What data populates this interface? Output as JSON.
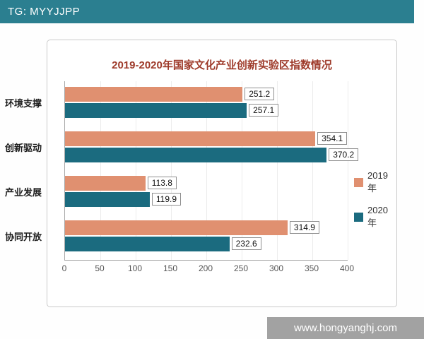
{
  "top_bar": {
    "label": "TG: MYYJJPP",
    "bg": "#2B7F90",
    "text_color": "#FFFFFF"
  },
  "bottom_bar": {
    "label": "www.hongyanghj.com",
    "bg": "#A2A2A2",
    "text_color": "#FFFFFF"
  },
  "chart_data": {
    "type": "bar",
    "orientation": "horizontal",
    "title": "2019-2020年国家文化产业创新实验区指数情况",
    "title_color": "#9E3A2A",
    "categories": [
      "环境支撑",
      "创新驱动",
      "产业发展",
      "协同开放"
    ],
    "series": [
      {
        "name": "2019年",
        "color": "#E09070",
        "values": [
          251.2,
          354.1,
          113.8,
          314.9
        ]
      },
      {
        "name": "2020年",
        "color": "#1B6B7F",
        "values": [
          257.1,
          370.2,
          119.9,
          232.6
        ]
      }
    ],
    "xlim": [
      0,
      400
    ],
    "xticks": [
      0,
      50,
      100,
      150,
      200,
      250,
      300,
      350,
      400
    ],
    "legend_position": "right",
    "grid": true,
    "value_labels": true
  }
}
